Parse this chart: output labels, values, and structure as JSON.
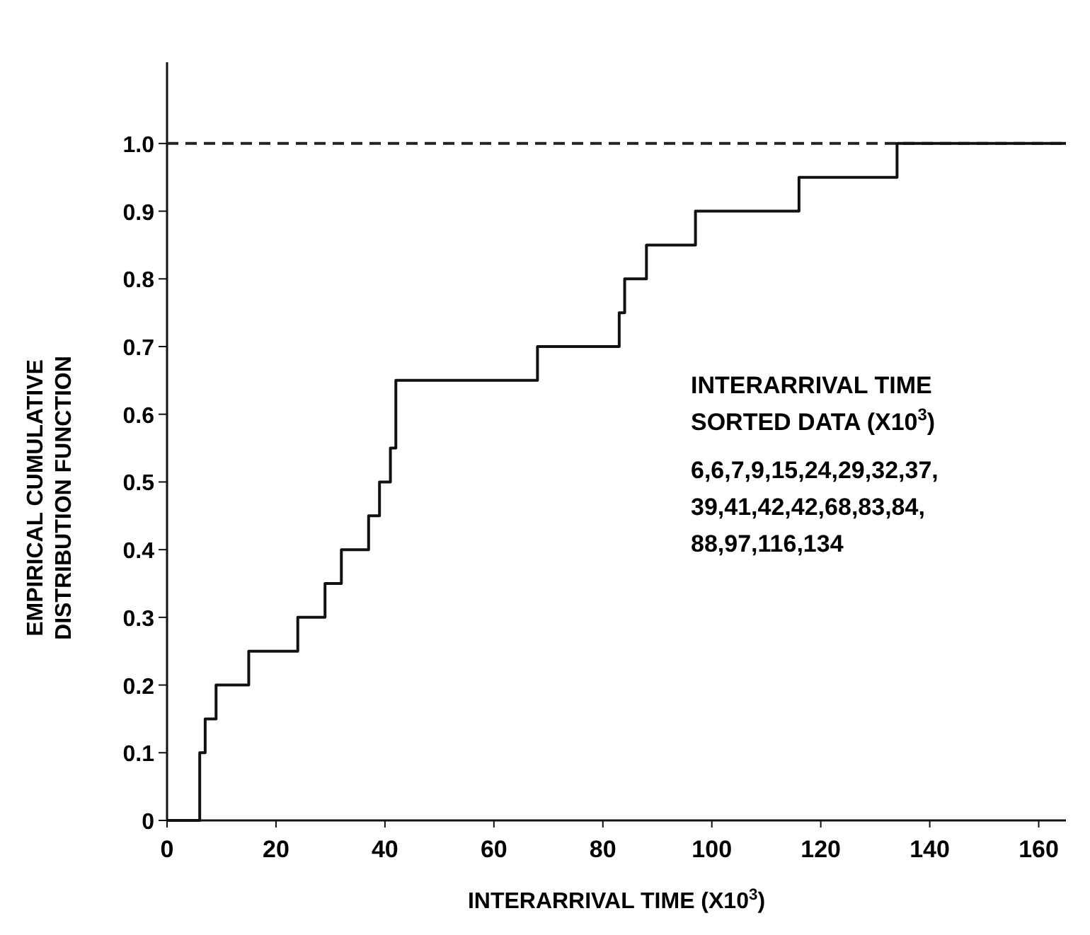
{
  "chart_data": {
    "type": "step",
    "xlabel": "INTERARRIVAL TIME (X10$^{3}$)",
    "ylabel": "EMPIRICAL CUMULATIVE DISTRIBUTION FUNCTION",
    "x": [
      0,
      6,
      7,
      9,
      15,
      24,
      29,
      32,
      37,
      39,
      41,
      42,
      68,
      83,
      84,
      88,
      97,
      116,
      134,
      165
    ],
    "series": [
      {
        "color": "#111111",
        "values": [
          0,
          0.1,
          0.15,
          0.2,
          0.25,
          0.3,
          0.35,
          0.4,
          0.45,
          0.5,
          0.55,
          0.65,
          0.7,
          0.75,
          0.8,
          0.85,
          0.9,
          0.95,
          1.0,
          1.0
        ]
      }
    ],
    "xlim": [
      0,
      165
    ],
    "xticks": [
      0,
      20,
      40,
      60,
      80,
      100,
      120,
      140,
      160
    ],
    "ylim": [
      0,
      1.12
    ],
    "yticks": [
      {
        "value": 0,
        "label": "0"
      },
      0.1,
      0.2,
      0.3,
      0.4,
      0.5,
      0.6,
      0.7,
      0.8,
      0.9,
      {
        "value": 1,
        "label": "1.0"
      }
    ],
    "ref_lines": [
      {
        "axis": "y",
        "value": 1,
        "line_style": "dashed",
        "color": "#222222"
      }
    ],
    "annotations": [
      "INTERARRIVAL TIME",
      "SORTED DATA (X10$^{3}$)",
      "6,6,7,9,15,24,29,32,37,",
      "39,41,42,42,68,83,84,",
      "88,97,116,134"
    ],
    "grid": false,
    "line_style": "solid"
  }
}
